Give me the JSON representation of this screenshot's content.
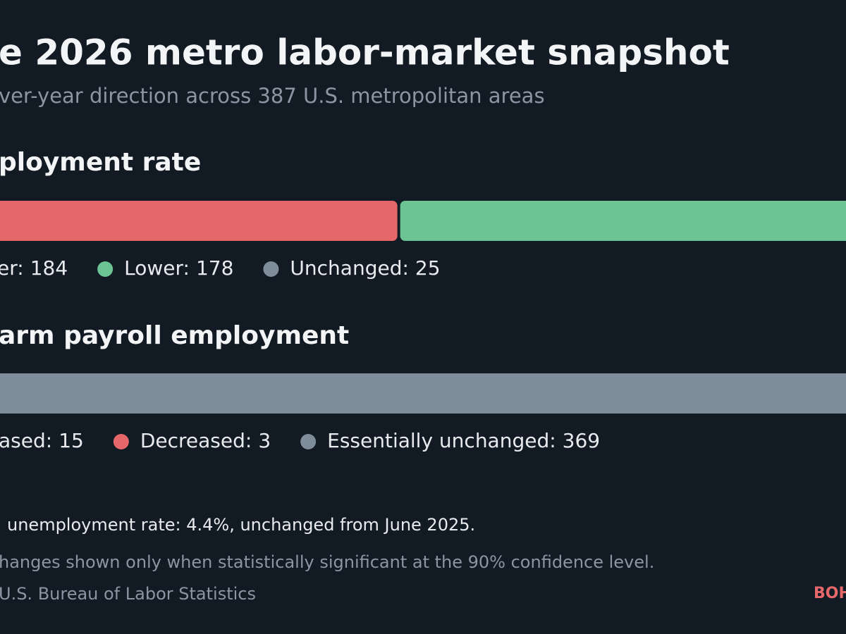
{
  "header": {
    "title": "e 2026 metro labor-market snapshot",
    "subtitle": "ver-year direction across 387 U.S. metropolitan areas"
  },
  "chart_data": [
    {
      "type": "stacked_bar",
      "title": "ployment rate",
      "series": [
        {
          "name": "er:",
          "color": "#e5676a",
          "values": [
            184
          ]
        },
        {
          "name": "Lower:",
          "color": "#6cc494",
          "values": [
            178
          ]
        },
        {
          "name": "Unchanged:",
          "color": "#7f8c99",
          "values": [
            25
          ]
        }
      ]
    },
    {
      "type": "stacked_bar",
      "title": "arm payroll employment",
      "series": [
        {
          "name": "ased:",
          "color": "#6cc494",
          "values": [
            15
          ]
        },
        {
          "name": "Decreased:",
          "color": "#e5676a",
          "values": [
            3
          ]
        },
        {
          "name": "Essentially unchanged:",
          "color": "#7f8c99",
          "values": [
            369
          ]
        }
      ]
    }
  ],
  "footer": {
    "note": "unemployment rate: 4.4%, unchanged from June 2025.",
    "footnote": "hanges shown only when statistically significant at the 90% confidence level.",
    "source": "U.S. Bureau of Labor Statistics",
    "brand": "BOH"
  }
}
